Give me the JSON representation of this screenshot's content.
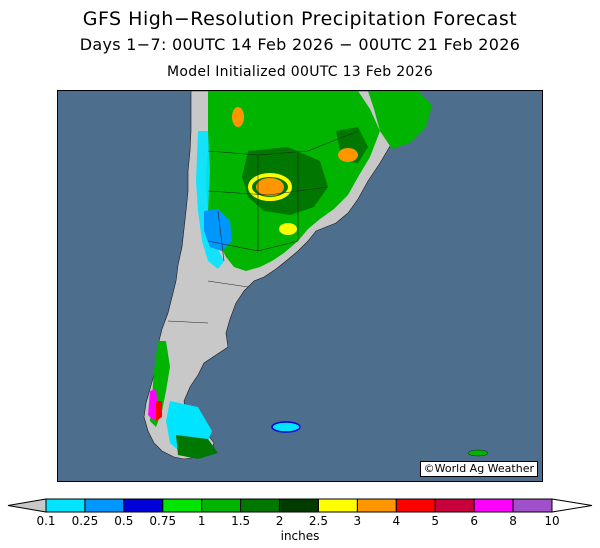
{
  "title": "GFS High−Resolution Precipitation Forecast",
  "subtitle": "Days 1−7: 00UTC 14 Feb 2026 − 00UTC 21 Feb 2026",
  "initialized": "Model Initialized 00UTC 13 Feb 2026",
  "credit": "©World Ag Weather",
  "legend": {
    "units": "inches",
    "ticks": [
      "0.1",
      "0.25",
      "0.5",
      "0.75",
      "1",
      "1.5",
      "2",
      "2.5",
      "3",
      "4",
      "5",
      "6",
      "8",
      "10"
    ],
    "colors": [
      "#c8c8c8",
      "#00e4ff",
      "#0096ff",
      "#0000d8",
      "#00e400",
      "#00b400",
      "#007800",
      "#003c00",
      "#ffff00",
      "#ff9600",
      "#ff0000",
      "#c8003c",
      "#ff00ff",
      "#a050c8",
      "#ffffff"
    ]
  },
  "map": {
    "ocean_color": "#4e6e8e",
    "dry_land_color": "#c8c8c8",
    "region": "Southern South America"
  }
}
